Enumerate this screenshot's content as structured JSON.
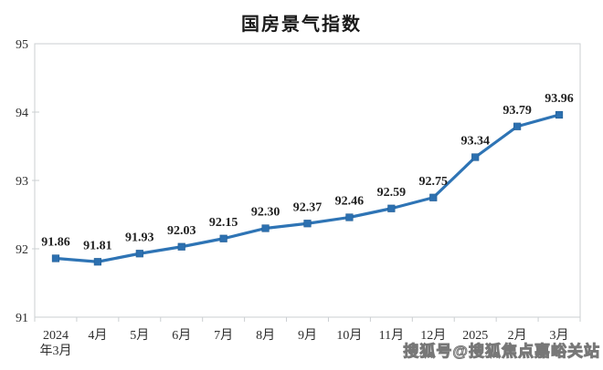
{
  "header": {
    "title": "国房景气指数"
  },
  "watermark": {
    "text": "搜狐号@搜狐焦点嘉峪关站"
  },
  "colors": {
    "line": "#2E74B5",
    "marker_fill": "#2C70B0",
    "marker_edge": "#245E94",
    "axis": "#CBCFD2",
    "axis_text": "#2E2E2E",
    "data_label_text": "#1F1F1F",
    "title_text": "#1A1A1A",
    "background": "#FFFFFF"
  },
  "chart_data": {
    "type": "line",
    "title": "国房景气指数",
    "categories": [
      "2024\n年3月",
      "4月",
      "5月",
      "6月",
      "7月",
      "8月",
      "9月",
      "10月",
      "11月",
      "12月",
      "2025",
      "2月",
      "3月"
    ],
    "values": [
      91.86,
      91.81,
      91.93,
      92.03,
      92.15,
      92.3,
      92.37,
      92.46,
      92.59,
      92.75,
      93.34,
      93.79,
      93.96
    ],
    "data_labels": [
      "91.86",
      "91.81",
      "91.93",
      "92.03",
      "92.15",
      "92.30",
      "92.37",
      "92.46",
      "92.59",
      "92.75",
      "93.34",
      "93.79",
      "93.96"
    ],
    "xlabel": "",
    "ylabel": "",
    "ylim": [
      91,
      95
    ],
    "yticks": [
      91,
      92,
      93,
      94,
      95
    ],
    "grid": false,
    "legend": "none",
    "marker": "square",
    "data_labels_shown": true
  }
}
